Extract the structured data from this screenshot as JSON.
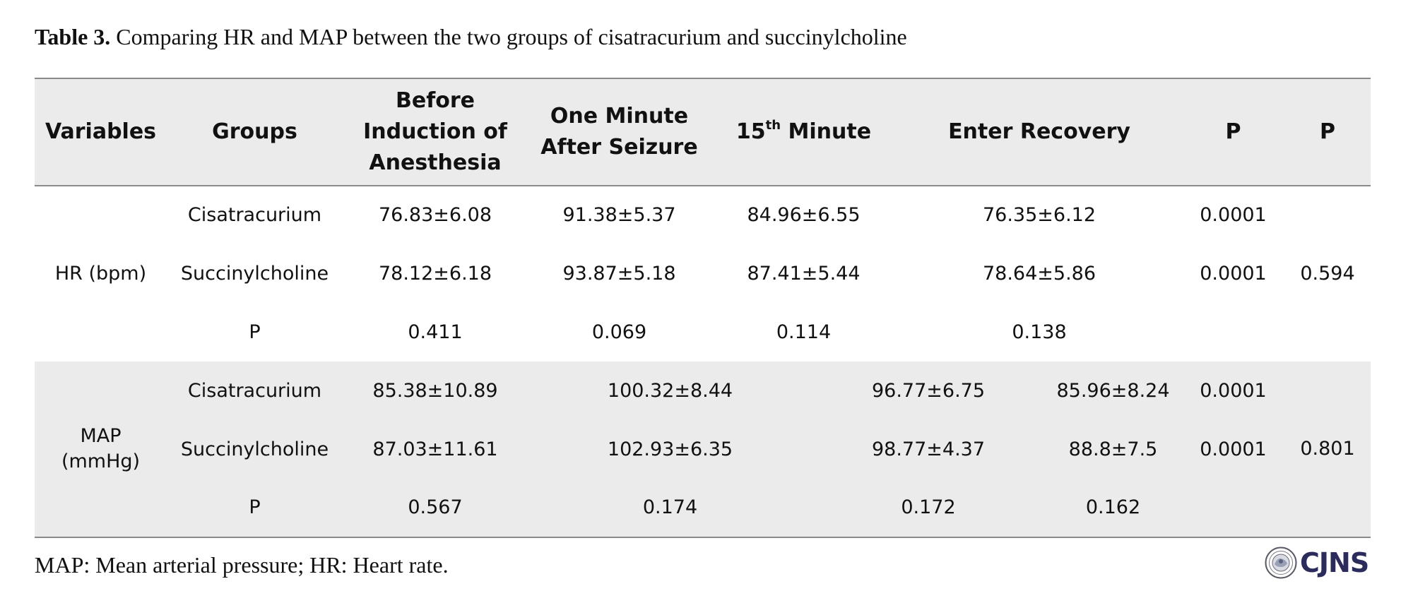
{
  "caption": {
    "label": "Table 3.",
    "text": "Comparing HR and MAP between the two groups of cisatracurium and succinylcholine"
  },
  "headers": {
    "variables": "Variables",
    "groups": "Groups",
    "before": "Before Induction of Anesthesia",
    "one_minute": "One Minute After Seizure",
    "fifteenth_num": "15",
    "fifteenth_sup": "th",
    "fifteenth_word": " Minute",
    "enter_recovery": "Enter Recovery",
    "p1": "P",
    "p2": "P"
  },
  "hr": {
    "label": "HR (bpm)",
    "overall_p": "0.594",
    "rows": [
      {
        "group": "Cisatracurium",
        "before": "76.83±6.08",
        "one_minute": "91.38±5.37",
        "fifteenth": "84.96±6.55",
        "recovery": "76.35±6.12",
        "p": "0.0001"
      },
      {
        "group": "Succinylcholine",
        "before": "78.12±6.18",
        "one_minute": "93.87±5.18",
        "fifteenth": "87.41±5.44",
        "recovery": "78.64±5.86",
        "p": "0.0001"
      },
      {
        "group": "P",
        "before": "0.411",
        "one_minute": "0.069",
        "fifteenth": "0.114",
        "recovery": "0.138",
        "p": ""
      }
    ]
  },
  "map": {
    "label_line1": "MAP",
    "label_line2": "(mmHg)",
    "overall_p": "0.801",
    "rows": [
      {
        "group": "Cisatracurium",
        "before": "85.38±10.89",
        "one_minute": "100.32±8.44",
        "fifteenth": "96.77±6.75",
        "recovery": "85.96±8.24",
        "p": "0.0001"
      },
      {
        "group": "Succinylcholine",
        "before": "87.03±11.61",
        "one_minute": "102.93±6.35",
        "fifteenth": "98.77±4.37",
        "recovery": "88.8±7.5",
        "p": "0.0001"
      },
      {
        "group": "P",
        "before": "0.567",
        "one_minute": "0.174",
        "fifteenth": "0.172",
        "recovery": "0.162",
        "p": ""
      }
    ]
  },
  "footnote": "MAP: Mean arterial pressure; HR: Heart rate.",
  "logo": {
    "text": "CJNS",
    "color": "#2b2c5c"
  }
}
